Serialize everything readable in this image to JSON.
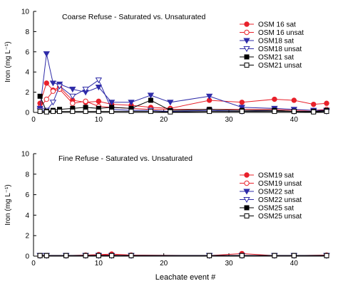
{
  "figure": {
    "xlabel": "Leachate event #"
  },
  "chart_data": [
    {
      "type": "line",
      "title": "Coarse Refuse  -  Saturated vs. Unsaturated",
      "ylabel": "Iron (mg L⁻¹)",
      "xlabel": "Leachate event #",
      "xlim": [
        0,
        45
      ],
      "ylim": [
        0,
        10
      ],
      "xticks": [
        0,
        10,
        20,
        30,
        40
      ],
      "yticks": [
        0,
        2,
        4,
        6,
        8,
        10
      ],
      "grid": false,
      "legend_position": "top-right",
      "series": [
        {
          "name": "OSM 16 sat",
          "color": "#e8202a",
          "marker": "circle",
          "filled": true,
          "x": [
            1,
            2,
            3,
            4,
            6,
            8,
            10,
            12,
            15,
            18,
            21,
            27,
            32,
            37,
            40,
            43,
            45
          ],
          "y": [
            0.9,
            2.9,
            2.2,
            2.5,
            1.2,
            1.0,
            1.1,
            0.8,
            0.7,
            0.5,
            0.4,
            1.2,
            1.0,
            1.3,
            1.2,
            0.8,
            0.9
          ]
        },
        {
          "name": "OSM 16 unsat",
          "color": "#e8202a",
          "marker": "circle",
          "filled": false,
          "x": [
            1,
            2,
            3,
            4,
            6,
            8,
            10,
            12,
            15,
            18,
            21,
            27,
            32,
            37,
            40,
            43,
            45
          ],
          "y": [
            0.5,
            1.3,
            2.1,
            2.3,
            0.9,
            1.1,
            0.6,
            0.5,
            0.4,
            0.3,
            0.3,
            0.3,
            0.3,
            0.3,
            0.2,
            0.2,
            0.3
          ]
        },
        {
          "name": "OSM18 sat",
          "color": "#2e2ba8",
          "marker": "tri-down",
          "filled": true,
          "x": [
            1,
            2,
            3,
            4,
            6,
            8,
            10,
            12,
            15,
            18,
            21,
            27,
            32,
            37,
            40,
            43,
            45
          ],
          "y": [
            0.4,
            5.8,
            2.9,
            2.8,
            2.3,
            2.0,
            2.5,
            1.0,
            1.0,
            1.7,
            1.0,
            1.6,
            0.5,
            0.4,
            0.3,
            0.2,
            0.2
          ]
        },
        {
          "name": "OSM18 unsat",
          "color": "#2e2ba8",
          "marker": "tri-down",
          "filled": false,
          "x": [
            1,
            2,
            3,
            4,
            6,
            8,
            10,
            12,
            15,
            18,
            21,
            27,
            32,
            37,
            40,
            43,
            45
          ],
          "y": [
            0.2,
            0.2,
            1.0,
            2.6,
            1.6,
            2.3,
            3.2,
            0.3,
            0.2,
            0.2,
            0.1,
            0.2,
            0.1,
            0.2,
            0.1,
            0.1,
            0.1
          ]
        },
        {
          "name": "OSM21 sat",
          "color": "#000000",
          "marker": "square",
          "filled": true,
          "x": [
            1,
            2,
            3,
            4,
            6,
            8,
            10,
            12,
            15,
            18,
            21,
            27,
            32,
            37,
            40,
            43,
            45
          ],
          "y": [
            1.6,
            0.1,
            0.2,
            0.3,
            0.4,
            0.5,
            0.4,
            0.5,
            0.4,
            1.2,
            0.2,
            0.3,
            0.2,
            0.2,
            0.1,
            0.1,
            0.2
          ]
        },
        {
          "name": "OSM21 unsat",
          "color": "#000000",
          "marker": "square",
          "filled": false,
          "x": [
            1,
            2,
            3,
            4,
            6,
            8,
            10,
            12,
            15,
            18,
            21,
            27,
            32,
            37,
            40,
            43,
            45
          ],
          "y": [
            0.1,
            0.05,
            0.1,
            0.1,
            0.1,
            0.1,
            0.1,
            0.1,
            0.1,
            0.1,
            0.05,
            0.1,
            0.1,
            0.1,
            0.1,
            0.05,
            0.1
          ]
        }
      ]
    },
    {
      "type": "line",
      "title": "Fine Refuse  -  Saturated vs. Unsaturated",
      "ylabel": "Iron (mg L⁻¹)",
      "xlabel": "Leachate event #",
      "xlim": [
        0,
        45
      ],
      "ylim": [
        0,
        10
      ],
      "xticks": [
        0,
        10,
        20,
        30,
        40
      ],
      "yticks": [
        0,
        2,
        4,
        6,
        8,
        10
      ],
      "grid": false,
      "legend_position": "top-right",
      "series": [
        {
          "name": "OSM19 sat",
          "color": "#e8202a",
          "marker": "circle",
          "filled": true,
          "x": [
            1,
            2,
            5,
            8,
            10,
            12,
            15,
            27,
            32,
            37,
            40,
            45
          ],
          "y": [
            0.05,
            0.05,
            0.05,
            0.1,
            0.15,
            0.2,
            0.1,
            0.05,
            0.25,
            0.05,
            0.05,
            0.1
          ]
        },
        {
          "name": "OSM19 unsat",
          "color": "#e8202a",
          "marker": "circle",
          "filled": false,
          "x": [
            1,
            2,
            5,
            8,
            10,
            12,
            15,
            27,
            32,
            37,
            40,
            45
          ],
          "y": [
            0.05,
            0.05,
            0.05,
            0.05,
            0.1,
            0.1,
            0.05,
            0.05,
            0.05,
            0.05,
            0.05,
            0.05
          ]
        },
        {
          "name": "OSM22 sat",
          "color": "#2e2ba8",
          "marker": "tri-down",
          "filled": true,
          "x": [
            1,
            2,
            5,
            8,
            10,
            12,
            15,
            27,
            32,
            37,
            40,
            45
          ],
          "y": [
            0.05,
            0.05,
            0.05,
            0.05,
            0.05,
            0.05,
            0.05,
            0.05,
            0.05,
            0.05,
            0.05,
            0.05
          ]
        },
        {
          "name": "OSM22 unsat",
          "color": "#2e2ba8",
          "marker": "tri-down",
          "filled": false,
          "x": [
            1,
            2,
            5,
            8,
            10,
            12,
            15,
            27,
            32,
            37,
            40,
            45
          ],
          "y": [
            0.05,
            0.05,
            0.05,
            0.05,
            0.05,
            0.05,
            0.05,
            0.05,
            0.05,
            0.05,
            0.05,
            0.05
          ]
        },
        {
          "name": "OSM25 sat",
          "color": "#000000",
          "marker": "square",
          "filled": true,
          "x": [
            1,
            2,
            5,
            8,
            10,
            12,
            15,
            27,
            32,
            37,
            40,
            45
          ],
          "y": [
            0.05,
            0.05,
            0.05,
            0.05,
            0.05,
            0.05,
            0.05,
            0.05,
            0.05,
            0.05,
            0.05,
            0.05
          ]
        },
        {
          "name": "OSM25 unsat",
          "color": "#000000",
          "marker": "square",
          "filled": false,
          "x": [
            1,
            2,
            5,
            8,
            10,
            12,
            15,
            27,
            32,
            37,
            40,
            45
          ],
          "y": [
            0.05,
            0.05,
            0.05,
            0.05,
            0.05,
            0.05,
            0.05,
            0.05,
            0.05,
            0.05,
            0.05,
            0.05
          ]
        }
      ]
    }
  ]
}
